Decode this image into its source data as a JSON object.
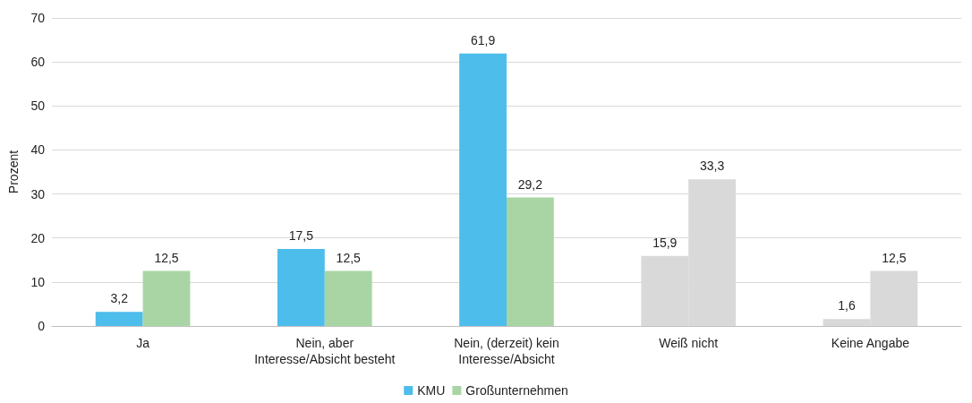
{
  "chart_data": {
    "type": "bar",
    "ylabel": "Prozent",
    "categories": [
      "Ja",
      "Nein, aber\nInteresse/Absicht besteht",
      "Nein, (derzeit) kein\nInteresse/Absicht",
      "Weiß nicht",
      "Keine Angabe"
    ],
    "series": [
      {
        "name": "KMU",
        "color": "#4dbdeb",
        "colors": [
          "#4dbdeb",
          "#4dbdeb",
          "#4dbdeb",
          "#d9d9d9",
          "#d9d9d9"
        ],
        "values": [
          3.2,
          17.5,
          61.9,
          15.9,
          1.6
        ],
        "value_labels": [
          "3,2",
          "17,5",
          "61,9",
          "15,9",
          "1,6"
        ]
      },
      {
        "name": "Großunternehmen",
        "color": "#a9d5a5",
        "colors": [
          "#a9d5a5",
          "#a9d5a5",
          "#a9d5a5",
          "#d9d9d9",
          "#d9d9d9"
        ],
        "values": [
          12.5,
          12.5,
          29.2,
          33.3,
          12.5
        ],
        "value_labels": [
          "12,5",
          "12,5",
          "29,2",
          "33,3",
          "12,5"
        ]
      }
    ],
    "ylim": [
      0,
      70
    ],
    "yticks": [
      0,
      10,
      20,
      30,
      40,
      50,
      60,
      70
    ],
    "grid": "y",
    "legend": "bottom"
  }
}
